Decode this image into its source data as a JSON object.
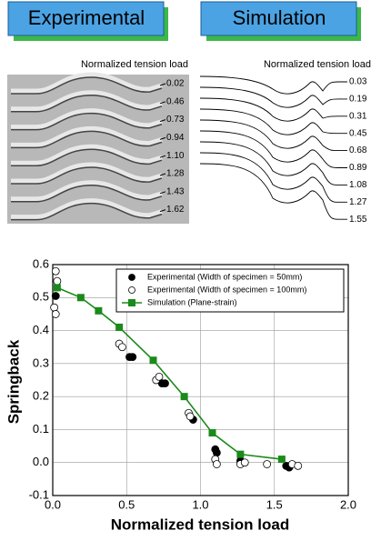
{
  "panels": [
    {
      "title": "Experimental",
      "caption": "Normalized tension load",
      "labels": [
        "0.02",
        "0.46",
        "0.73",
        "0.94",
        "1.10",
        "1.28",
        "1.43",
        "1.62"
      ]
    },
    {
      "title": "Simulation",
      "caption": "Normalized tension load",
      "labels": [
        "0.03",
        "0.19",
        "0.31",
        "0.45",
        "0.68",
        "0.89",
        "1.08",
        "1.27",
        "1.55"
      ]
    }
  ],
  "chart_data": {
    "type": "scatter",
    "x_label": "Normalized tension load",
    "y_label": "Springback",
    "xlim": [
      0,
      2
    ],
    "ylim": [
      -0.1,
      0.6
    ],
    "xticks": [
      {
        "value": 0,
        "label": "0.0"
      },
      0.5,
      {
        "value": 1,
        "label": "1.0"
      },
      1.5,
      {
        "value": 2,
        "label": "2.0"
      }
    ],
    "yticks": [
      -0.1,
      {
        "value": 0,
        "label": "0.0"
      },
      0.1,
      0.2,
      0.3,
      0.4,
      0.5,
      0.6
    ],
    "grid": true,
    "legend": "upper right",
    "series": [
      {
        "name": "Experimental (Width of specimen = 50mm)",
        "color": "#000000",
        "marker": "filled-circle",
        "x": [
          0.02,
          0.52,
          0.54,
          0.74,
          0.76,
          0.95,
          1.1,
          1.11,
          1.27,
          1.29,
          1.58,
          1.6
        ],
        "values": [
          0.505,
          0.32,
          0.32,
          0.24,
          0.24,
          0.13,
          0.04,
          0.03,
          0.005,
          0.0,
          -0.01,
          -0.015
        ]
      },
      {
        "name": "Experimental (Width of specimen = 100mm)",
        "color": "#ffffff",
        "marker": "open-circle",
        "x": [
          0.02,
          0.03,
          0.01,
          0.02,
          0.45,
          0.47,
          0.7,
          0.72,
          0.92,
          0.93,
          1.1,
          1.11,
          1.27,
          1.3,
          1.45,
          1.62,
          1.66
        ],
        "values": [
          0.58,
          0.55,
          0.47,
          0.45,
          0.36,
          0.35,
          0.25,
          0.26,
          0.15,
          0.14,
          0.01,
          -0.005,
          -0.005,
          0.0,
          -0.005,
          -0.005,
          -0.01
        ]
      },
      {
        "name": "Simulation (Plane-strain)",
        "color": "#1a8a1a",
        "marker": "square-line",
        "x": [
          0.03,
          0.19,
          0.31,
          0.45,
          0.68,
          0.89,
          1.08,
          1.27,
          1.55
        ],
        "values": [
          0.53,
          0.5,
          0.46,
          0.41,
          0.31,
          0.2,
          0.09,
          0.025,
          0.01
        ]
      }
    ]
  }
}
